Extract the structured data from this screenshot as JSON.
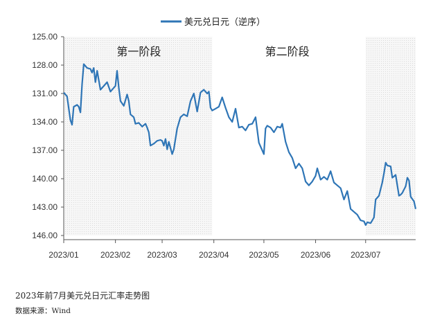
{
  "chart_data": {
    "type": "line",
    "series": [
      {
        "name": "美元兑日元（逆序）",
        "color": "#2e75b6",
        "points": [
          [
            "2023-01-01",
            130.9
          ],
          [
            "2023-01-03",
            131.3
          ],
          [
            "2023-01-05",
            133.8
          ],
          [
            "2023-01-06",
            134.3
          ],
          [
            "2023-01-07",
            132.4
          ],
          [
            "2023-01-09",
            132.2
          ],
          [
            "2023-01-10",
            132.4
          ],
          [
            "2023-01-11",
            133.0
          ],
          [
            "2023-01-12",
            130.0
          ],
          [
            "2023-01-13",
            127.9
          ],
          [
            "2023-01-15",
            128.3
          ],
          [
            "2023-01-17",
            128.4
          ],
          [
            "2023-01-18",
            128.8
          ],
          [
            "2023-01-19",
            128.3
          ],
          [
            "2023-01-20",
            129.8
          ],
          [
            "2023-01-21",
            128.6
          ],
          [
            "2023-01-23",
            130.6
          ],
          [
            "2023-01-25",
            130.2
          ],
          [
            "2023-01-27",
            129.8
          ],
          [
            "2023-01-29",
            130.8
          ],
          [
            "2023-01-31",
            130.4
          ],
          [
            "2023-02-01",
            130.2
          ],
          [
            "2023-02-02",
            128.6
          ],
          [
            "2023-02-03",
            130.4
          ],
          [
            "2023-02-04",
            131.8
          ],
          [
            "2023-02-06",
            132.3
          ],
          [
            "2023-02-08",
            131.1
          ],
          [
            "2023-02-09",
            131.8
          ],
          [
            "2023-02-10",
            133.2
          ],
          [
            "2023-02-12",
            133.5
          ],
          [
            "2023-02-13",
            134.2
          ],
          [
            "2023-02-15",
            134.1
          ],
          [
            "2023-02-17",
            134.5
          ],
          [
            "2023-02-19",
            134.2
          ],
          [
            "2023-02-20",
            134.6
          ],
          [
            "2023-02-21",
            135.1
          ],
          [
            "2023-02-22",
            136.5
          ],
          [
            "2023-02-24",
            136.3
          ],
          [
            "2023-02-26",
            136.0
          ],
          [
            "2023-02-28",
            135.9
          ],
          [
            "2023-03-01",
            136.0
          ],
          [
            "2023-03-02",
            136.5
          ],
          [
            "2023-03-03",
            135.8
          ],
          [
            "2023-03-04",
            136.9
          ],
          [
            "2023-03-05",
            136.1
          ],
          [
            "2023-03-07",
            137.4
          ],
          [
            "2023-03-08",
            136.9
          ],
          [
            "2023-03-10",
            134.7
          ],
          [
            "2023-03-12",
            133.5
          ],
          [
            "2023-03-14",
            133.2
          ],
          [
            "2023-03-16",
            133.4
          ],
          [
            "2023-03-18",
            131.8
          ],
          [
            "2023-03-20",
            131.0
          ],
          [
            "2023-03-22",
            132.9
          ],
          [
            "2023-03-24",
            130.9
          ],
          [
            "2023-03-26",
            130.6
          ],
          [
            "2023-03-28",
            131.0
          ],
          [
            "2023-03-29",
            130.8
          ],
          [
            "2023-03-30",
            132.5
          ],
          [
            "2023-03-31",
            132.8
          ],
          [
            "2023-04-02",
            132.6
          ],
          [
            "2023-04-04",
            132.4
          ],
          [
            "2023-04-06",
            131.4
          ],
          [
            "2023-04-08",
            132.5
          ],
          [
            "2023-04-10",
            133.5
          ],
          [
            "2023-04-12",
            134.0
          ],
          [
            "2023-04-14",
            132.6
          ],
          [
            "2023-04-16",
            134.6
          ],
          [
            "2023-04-18",
            134.5
          ],
          [
            "2023-04-20",
            134.9
          ],
          [
            "2023-04-22",
            134.3
          ],
          [
            "2023-04-24",
            134.2
          ],
          [
            "2023-04-26",
            133.5
          ],
          [
            "2023-04-28",
            136.2
          ],
          [
            "2023-04-30",
            137.0
          ],
          [
            "2023-05-01",
            137.4
          ],
          [
            "2023-05-02",
            134.7
          ],
          [
            "2023-05-03",
            134.4
          ],
          [
            "2023-05-05",
            134.6
          ],
          [
            "2023-05-07",
            135.1
          ],
          [
            "2023-05-09",
            134.5
          ],
          [
            "2023-05-11",
            134.6
          ],
          [
            "2023-05-12",
            134.2
          ],
          [
            "2023-05-14",
            136.1
          ],
          [
            "2023-05-16",
            137.2
          ],
          [
            "2023-05-18",
            137.8
          ],
          [
            "2023-05-20",
            138.9
          ],
          [
            "2023-05-22",
            138.4
          ],
          [
            "2023-05-24",
            138.9
          ],
          [
            "2023-05-26",
            140.3
          ],
          [
            "2023-05-28",
            140.7
          ],
          [
            "2023-05-30",
            140.3
          ],
          [
            "2023-06-01",
            139.7
          ],
          [
            "2023-06-02",
            138.9
          ],
          [
            "2023-06-04",
            140.1
          ],
          [
            "2023-06-06",
            139.8
          ],
          [
            "2023-06-08",
            140.1
          ],
          [
            "2023-06-10",
            139.2
          ],
          [
            "2023-06-12",
            140.4
          ],
          [
            "2023-06-14",
            140.7
          ],
          [
            "2023-06-16",
            141.0
          ],
          [
            "2023-06-18",
            142.2
          ],
          [
            "2023-06-20",
            141.3
          ],
          [
            "2023-06-22",
            143.2
          ],
          [
            "2023-06-24",
            143.5
          ],
          [
            "2023-06-26",
            143.8
          ],
          [
            "2023-06-28",
            144.4
          ],
          [
            "2023-06-30",
            144.5
          ],
          [
            "2023-07-01",
            144.9
          ],
          [
            "2023-07-02",
            144.6
          ],
          [
            "2023-07-04",
            144.7
          ],
          [
            "2023-07-06",
            144.1
          ],
          [
            "2023-07-07",
            142.2
          ],
          [
            "2023-07-09",
            141.8
          ],
          [
            "2023-07-11",
            140.4
          ],
          [
            "2023-07-12",
            139.4
          ],
          [
            "2023-07-13",
            138.3
          ],
          [
            "2023-07-14",
            138.6
          ],
          [
            "2023-07-16",
            138.7
          ],
          [
            "2023-07-17",
            139.9
          ],
          [
            "2023-07-19",
            139.6
          ],
          [
            "2023-07-21",
            141.8
          ],
          [
            "2023-07-22",
            141.7
          ],
          [
            "2023-07-23",
            141.5
          ],
          [
            "2023-07-25",
            140.8
          ],
          [
            "2023-07-26",
            139.9
          ],
          [
            "2023-07-27",
            140.2
          ],
          [
            "2023-07-28",
            141.9
          ],
          [
            "2023-07-30",
            142.4
          ],
          [
            "2023-07-31",
            143.2
          ]
        ]
      }
    ],
    "ylim": [
      146.0,
      125.0
    ],
    "y_reversed": true,
    "yticks": [
      "125.00",
      "128.00",
      "131.00",
      "134.00",
      "137.00",
      "140.00",
      "143.00",
      "146.00"
    ],
    "xlim": [
      "2023-01-01",
      "2023-07-31"
    ],
    "xticks": [
      {
        "date": "2023-01-01",
        "label": "2023/01"
      },
      {
        "date": "2023-02-01",
        "label": "2023/02"
      },
      {
        "date": "2023-03-01",
        "label": "2023/03"
      },
      {
        "date": "2023-04-01",
        "label": "2023/04"
      },
      {
        "date": "2023-05-01",
        "label": "2023/05"
      },
      {
        "date": "2023-06-01",
        "label": "2023/06"
      },
      {
        "date": "2023-07-01",
        "label": "2023/07"
      }
    ],
    "shaded_regions": [
      {
        "from": "2023-01-01",
        "to": "2023-03-31",
        "label": "第一阶段"
      },
      {
        "from": "2023-07-01",
        "to": "2023-07-31",
        "label": ""
      }
    ],
    "annotations": [
      {
        "text": "第一阶段",
        "date": "2023-02-15"
      },
      {
        "text": "第二阶段",
        "date": "2023-05-15"
      }
    ],
    "legend_position": "top",
    "grid": false
  },
  "captions": {
    "title": "2023年前7月美元兑日元汇率走势图",
    "source": "数据来源：Wind"
  }
}
